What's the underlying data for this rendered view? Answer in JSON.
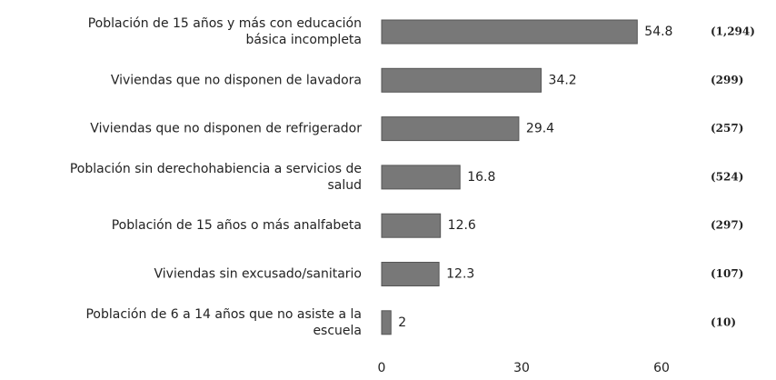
{
  "chart_data": {
    "type": "bar",
    "orientation": "horizontal",
    "categories": [
      [
        "Población de 15 años y más con educación",
        "básica incompleta"
      ],
      [
        "Viviendas que no disponen de lavadora"
      ],
      [
        "Viviendas que no disponen de refrigerador"
      ],
      [
        "Población sin derechohabiencia a servicios de",
        "salud"
      ],
      [
        "Población de 15 años o más analfabeta"
      ],
      [
        "Viviendas sin excusado/sanitario"
      ],
      [
        "Población de 6 a 14 años que no asiste a la",
        "escuela"
      ]
    ],
    "values": [
      54.8,
      34.2,
      29.4,
      16.8,
      12.6,
      12.3,
      2
    ],
    "counts": [
      "(1,294)",
      "(299)",
      "(257)",
      "(524)",
      "(297)",
      "(107)",
      "(10)"
    ],
    "color": "#787878",
    "xlim": [
      0,
      60
    ],
    "xticks": [
      0,
      30,
      60
    ],
    "grid": false
  }
}
